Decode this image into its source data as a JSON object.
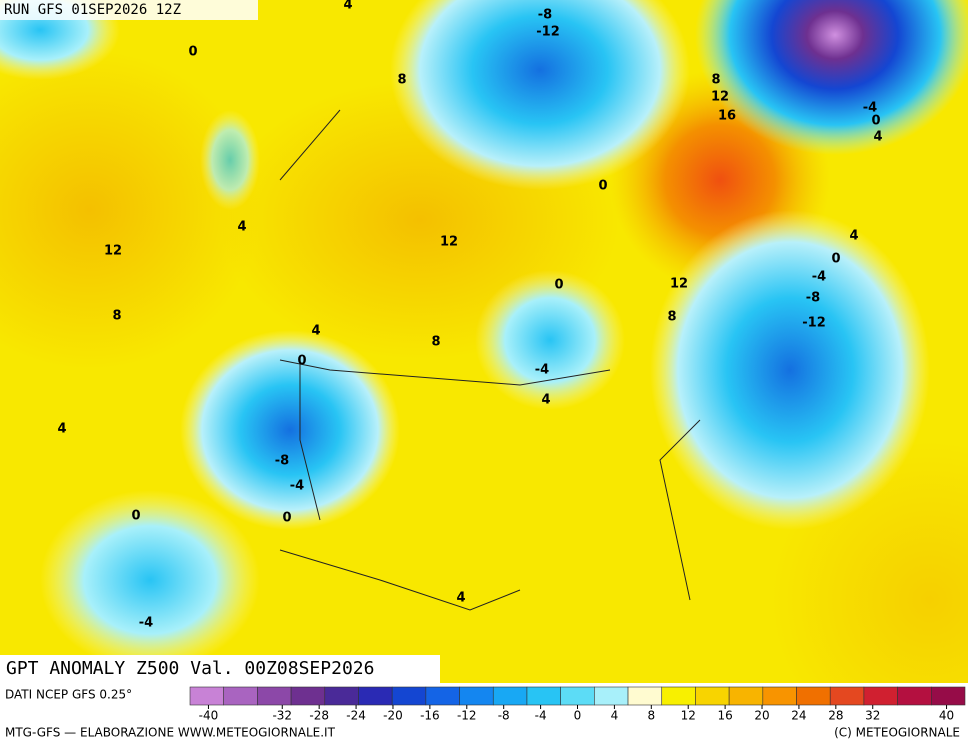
{
  "header": {
    "run": "RUN GFS 01SEP2026 12Z",
    "title": "GPT ANOMALY Z500 Val. 00Z08SEP2026",
    "source": "DATI NCEP GFS 0.25°",
    "footer_left": "MTG-GFS — ELABORAZIONE WWW.METEOGIORNALE.IT",
    "footer_right": "(C) METEOGIORNALE"
  },
  "map": {
    "contour_labels": [
      "4",
      "-8",
      "-12",
      "0",
      "8",
      "8",
      "12",
      "16",
      "-4",
      "0",
      "4",
      "0",
      "4",
      "12",
      "12",
      "4",
      "0",
      "-4",
      "-8",
      "-12",
      "0",
      "12",
      "8",
      "4",
      "8",
      "8",
      "0",
      "-4",
      "4",
      "4",
      "-8",
      "-4",
      "0",
      "0",
      "4",
      "-4"
    ]
  },
  "colorbar": {
    "range": [
      -42,
      42
    ],
    "colors": [
      "#c882d6",
      "#a964c0",
      "#8c48a8",
      "#6e3090",
      "#4a2a98",
      "#2a2ab4",
      "#1446d2",
      "#1464e6",
      "#1486f0",
      "#18a8f4",
      "#28c4f4",
      "#5cdcf6",
      "#a8f0fa",
      "#fffbd0",
      "#f8f000",
      "#f8d400",
      "#f8b400",
      "#f89400",
      "#f07000",
      "#e44820",
      "#d02030",
      "#b41040",
      "#960c48"
    ],
    "ticks": [
      -40,
      -32,
      -28,
      -24,
      -20,
      -16,
      -12,
      -8,
      -4,
      0,
      4,
      8,
      12,
      16,
      20,
      24,
      28,
      32,
      40
    ]
  }
}
